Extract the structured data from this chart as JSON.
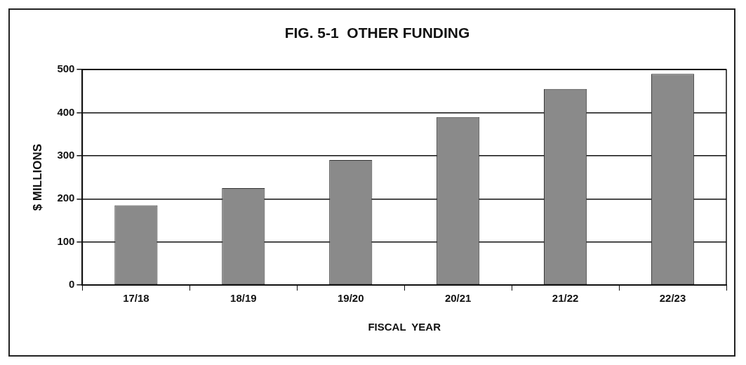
{
  "chart_data": {
    "type": "bar",
    "title": "FIG. 5-1  OTHER FUNDING",
    "xlabel": "FISCAL  YEAR",
    "ylabel": "$ MILLIONS",
    "categories": [
      "17/18",
      "18/19",
      "19/20",
      "20/21",
      "21/22",
      "22/23"
    ],
    "values": [
      185,
      225,
      290,
      390,
      455,
      490
    ],
    "color": "#8a8a8a",
    "ylim": [
      0,
      500
    ],
    "yticks": [
      0,
      100,
      200,
      300,
      400,
      500
    ],
    "grid": "y"
  }
}
